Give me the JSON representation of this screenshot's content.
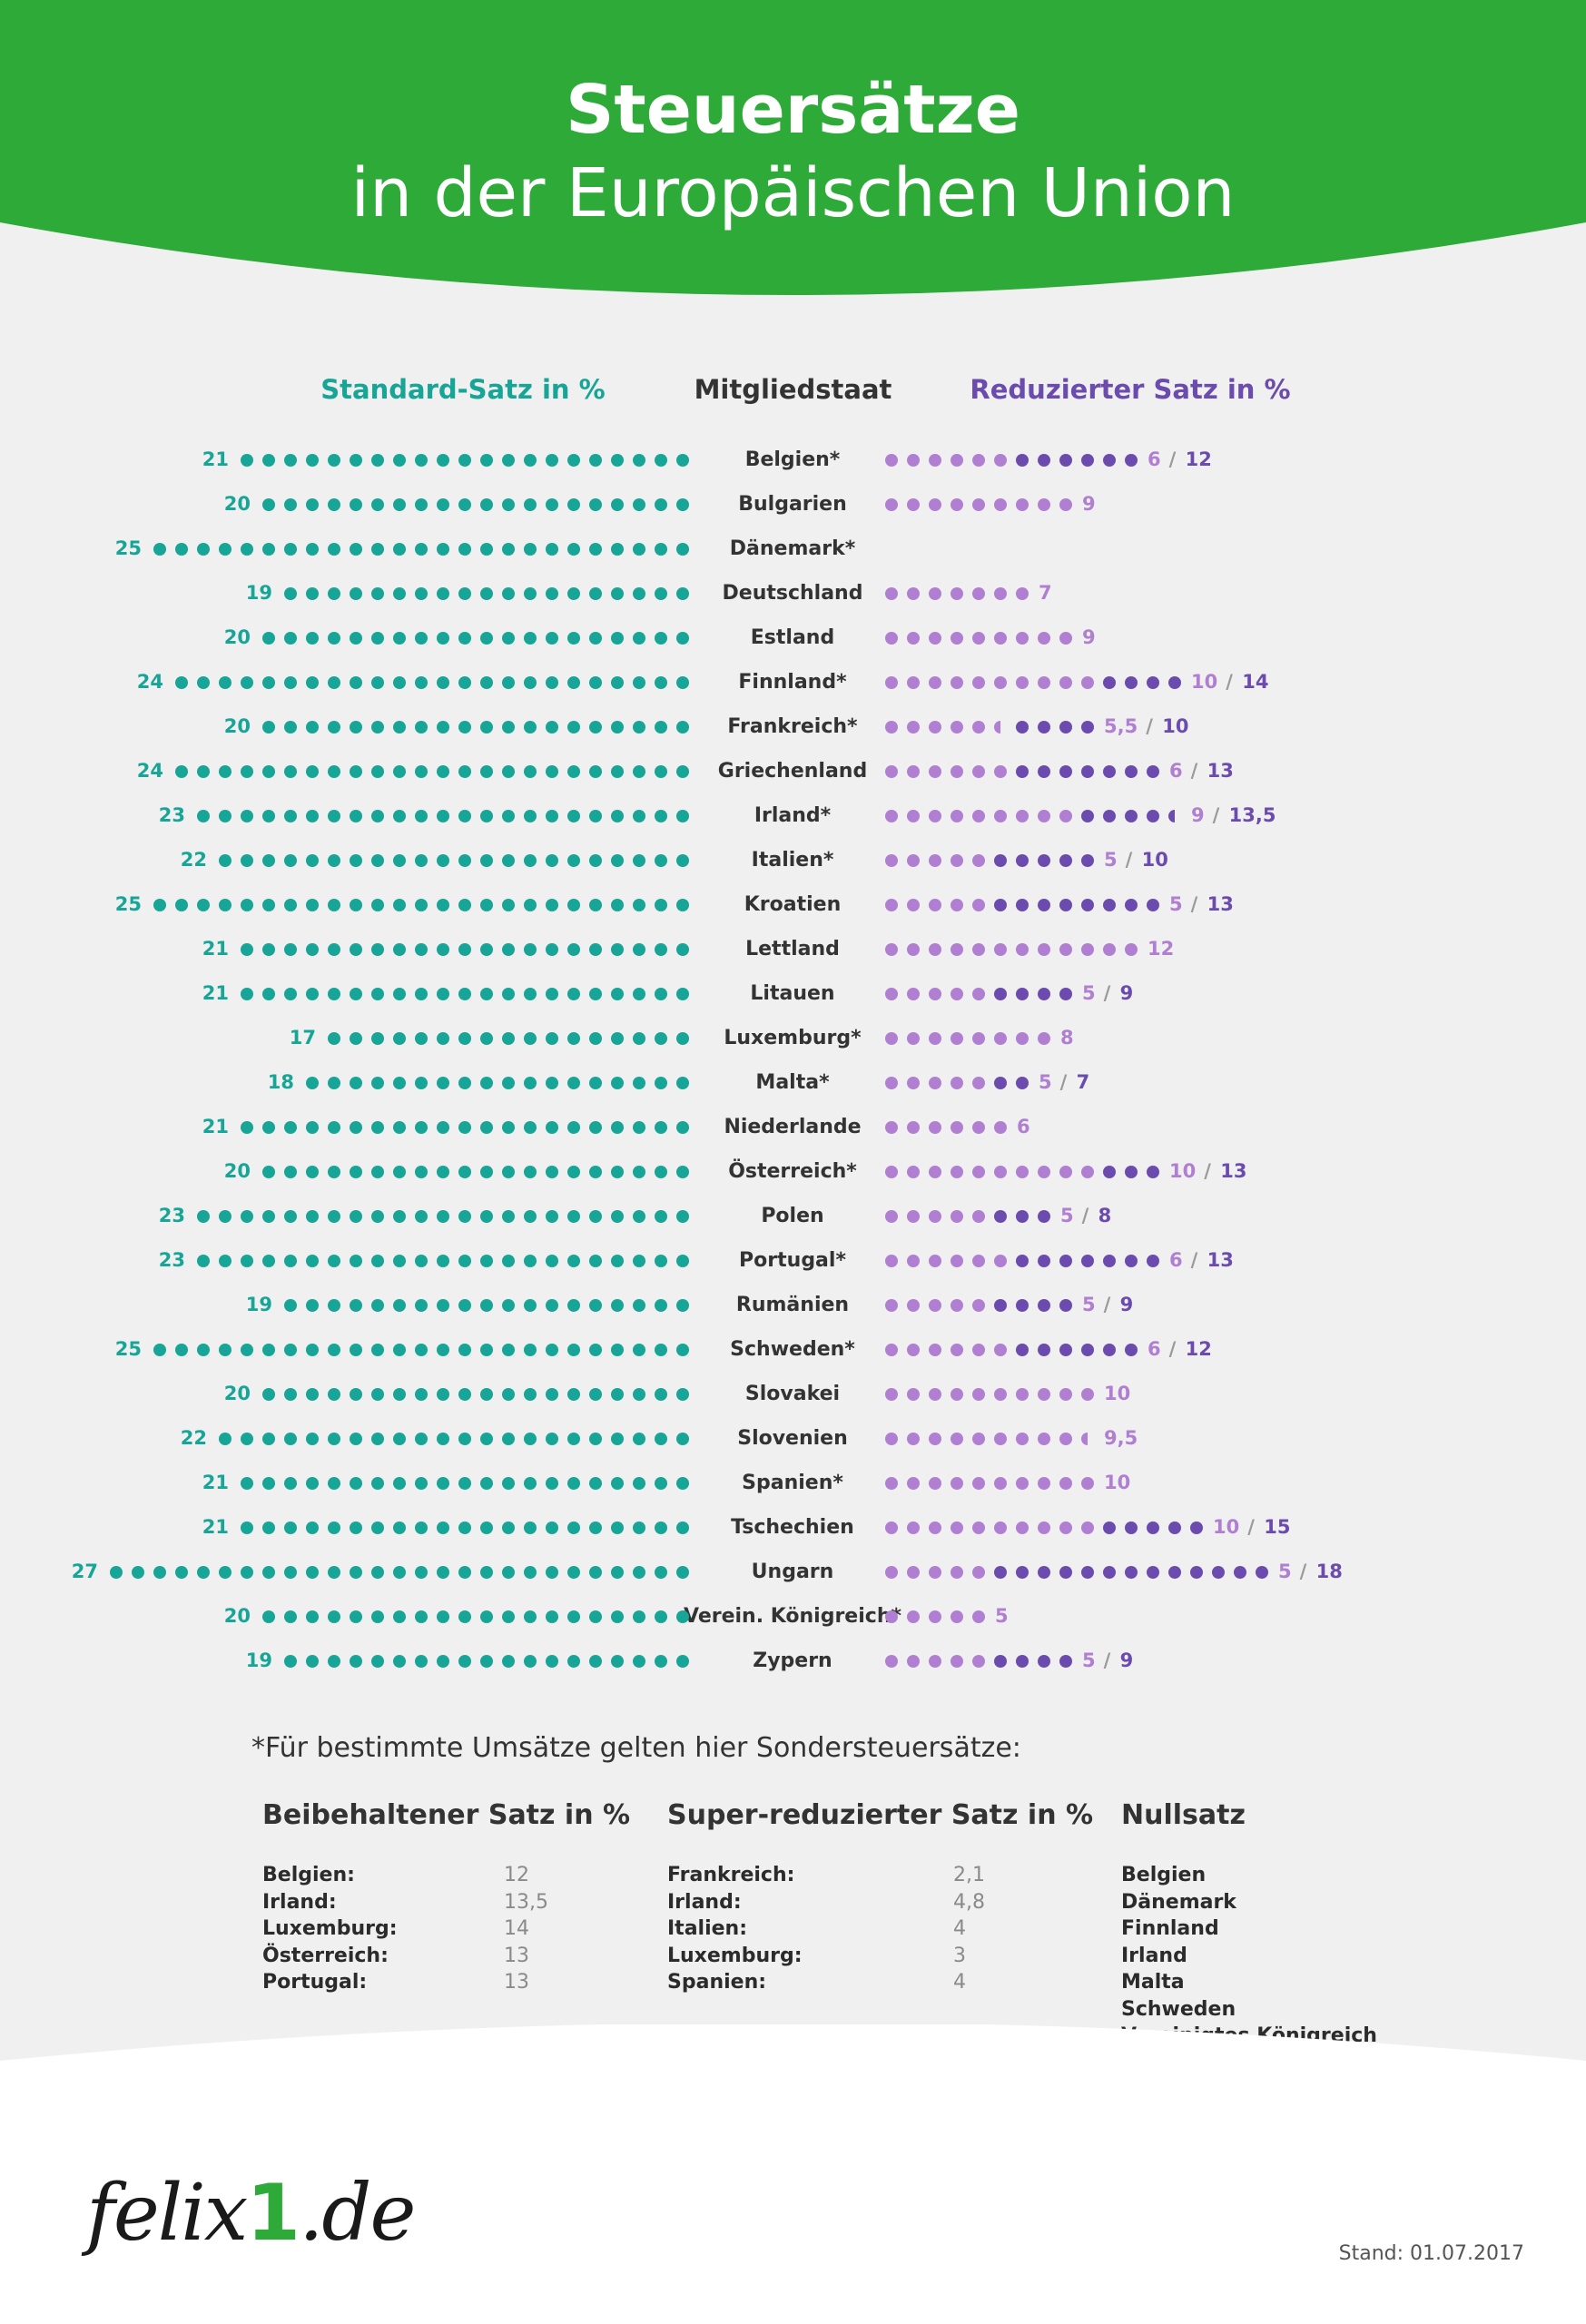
{
  "header": {
    "title_line1": "Steuersätze",
    "title_line2": "in der Europäischen Union",
    "color": "#2eaa38"
  },
  "columns": {
    "standard": "Standard-Satz in %",
    "country": "Mitgliedstaat",
    "reduced": "Reduzierter Satz in %"
  },
  "colors": {
    "standard": "#16a596",
    "reduced_light": "#b07fd1",
    "reduced_dark": "#6b4bae",
    "country_text": "#333333"
  },
  "chart_data": {
    "type": "bar",
    "title": "Steuersätze in der Europäischen Union",
    "categories": [
      "Belgien*",
      "Bulgarien",
      "Dänemark*",
      "Deutschland",
      "Estland",
      "Finnland*",
      "Frankreich*",
      "Griechenland",
      "Irland*",
      "Italien*",
      "Kroatien",
      "Lettland",
      "Litauen",
      "Luxemburg*",
      "Malta*",
      "Niederlande",
      "Österreich*",
      "Polen",
      "Portugal*",
      "Rumänien",
      "Schweden*",
      "Slovakei",
      "Slovenien",
      "Spanien*",
      "Tschechien",
      "Ungarn",
      "Verein. Königreich*",
      "Zypern"
    ],
    "series": [
      {
        "name": "Standard-Satz in %",
        "values": [
          21,
          20,
          25,
          19,
          20,
          24,
          20,
          24,
          23,
          22,
          25,
          21,
          21,
          17,
          18,
          21,
          20,
          23,
          23,
          19,
          25,
          20,
          22,
          21,
          21,
          27,
          20,
          19
        ]
      },
      {
        "name": "Reduzierter Satz in %",
        "values": [
          [
            6,
            12
          ],
          [
            9
          ],
          [],
          [
            7
          ],
          [
            9
          ],
          [
            10,
            14
          ],
          [
            5.5,
            10
          ],
          [
            6,
            13
          ],
          [
            9,
            13.5
          ],
          [
            5,
            10
          ],
          [
            5,
            13
          ],
          [
            12
          ],
          [
            5,
            9
          ],
          [
            8
          ],
          [
            5,
            7
          ],
          [
            6
          ],
          [
            10,
            13
          ],
          [
            5,
            8
          ],
          [
            6,
            13
          ],
          [
            5,
            9
          ],
          [
            6,
            12
          ],
          [
            10
          ],
          [
            9.5
          ],
          [
            10
          ],
          [
            10,
            15
          ],
          [
            5,
            18
          ],
          [
            5
          ],
          [
            5,
            9
          ]
        ]
      }
    ],
    "labels": {
      "standard": [
        "21",
        "20",
        "25",
        "19",
        "20",
        "24",
        "20",
        "24",
        "23",
        "22",
        "25",
        "21",
        "21",
        "17",
        "18",
        "21",
        "20",
        "23",
        "23",
        "19",
        "25",
        "20",
        "22",
        "21",
        "21",
        "27",
        "20",
        "19"
      ],
      "reduced_first": [
        "6",
        "9",
        "",
        "7",
        "9",
        "10",
        "5,5",
        "6",
        "9",
        "5",
        "5",
        "12",
        "5",
        "8",
        "5",
        "6",
        "10",
        "5",
        "6",
        "5",
        "6",
        "10",
        "9,5",
        "10",
        "10",
        "5",
        "5",
        "5"
      ],
      "reduced_second": [
        "12",
        "",
        "",
        "",
        "",
        "14",
        "10",
        "13",
        "13,5",
        "10",
        "13",
        "",
        "9",
        "",
        "7",
        "",
        "13",
        "8",
        "13",
        "9",
        "12",
        "",
        "",
        "",
        "15",
        "18",
        "",
        "9"
      ]
    },
    "separator": "/"
  },
  "footnote": {
    "intro": "*Für bestimmte Umsätze gelten hier Sondersteuersätze:",
    "retained": {
      "heading": "Beibehaltener Satz in %",
      "rows": [
        {
          "country": "Belgien:",
          "value": "12"
        },
        {
          "country": "Irland:",
          "value": "13,5"
        },
        {
          "country": "Luxemburg:",
          "value": "14"
        },
        {
          "country": "Österreich:",
          "value": "13"
        },
        {
          "country": "Portugal:",
          "value": "13"
        }
      ]
    },
    "super_reduced": {
      "heading": "Super-reduzierter Satz in %",
      "rows": [
        {
          "country": "Frankreich:",
          "value": "2,1"
        },
        {
          "country": "Irland:",
          "value": "4,8"
        },
        {
          "country": "Italien:",
          "value": "4"
        },
        {
          "country": "Luxemburg:",
          "value": "3"
        },
        {
          "country": "Spanien:",
          "value": "4"
        }
      ]
    },
    "zero_rate": {
      "heading": "Nullsatz",
      "countries": [
        "Belgien",
        "Dänemark",
        "Finnland",
        "Irland",
        "Malta",
        "Schweden",
        "Vereinigtes Königreich"
      ]
    }
  },
  "footer": {
    "logo_a": "felix",
    "logo_b": "1",
    "logo_c": ".de",
    "stand": "Stand: 01.07.2017"
  }
}
